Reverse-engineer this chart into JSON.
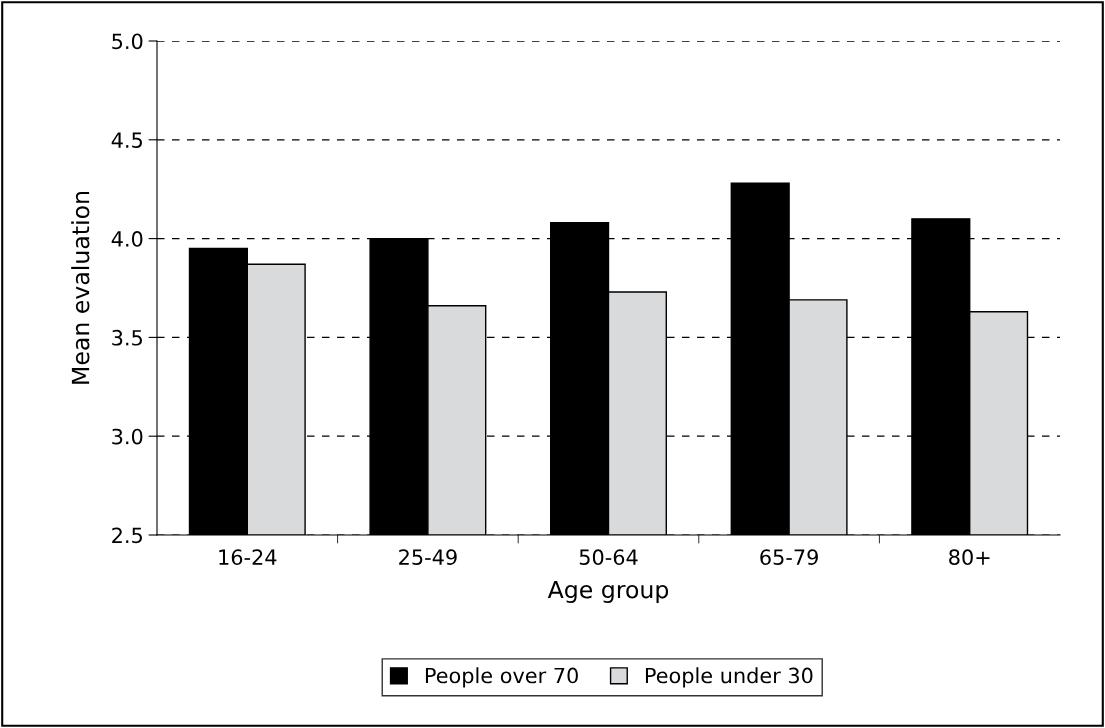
{
  "chart_data": {
    "type": "bar",
    "xlabel": "Age group",
    "ylabel": "Mean evaluation",
    "categories": [
      "16-24",
      "25-49",
      "50-64",
      "65-79",
      "80+"
    ],
    "series": [
      {
        "name": "People over 70",
        "color": "#000000",
        "values": [
          3.95,
          4.0,
          4.08,
          4.28,
          4.1
        ]
      },
      {
        "name": "People under 30",
        "color": "#d9dadc",
        "values": [
          3.87,
          3.66,
          3.73,
          3.69,
          3.63
        ]
      }
    ],
    "ylim": [
      2.5,
      5.0
    ],
    "yticks": [
      {
        "value": 2.5,
        "label": "2.5"
      },
      {
        "value": 3.0,
        "label": "3.0"
      },
      {
        "value": 3.5,
        "label": "3.5"
      },
      {
        "value": 4.0,
        "label": "4.0"
      },
      {
        "value": 4.5,
        "label": "4.5"
      },
      {
        "value": 5.0,
        "label": "5.0"
      }
    ],
    "grid": "y",
    "legend": "bottom"
  }
}
